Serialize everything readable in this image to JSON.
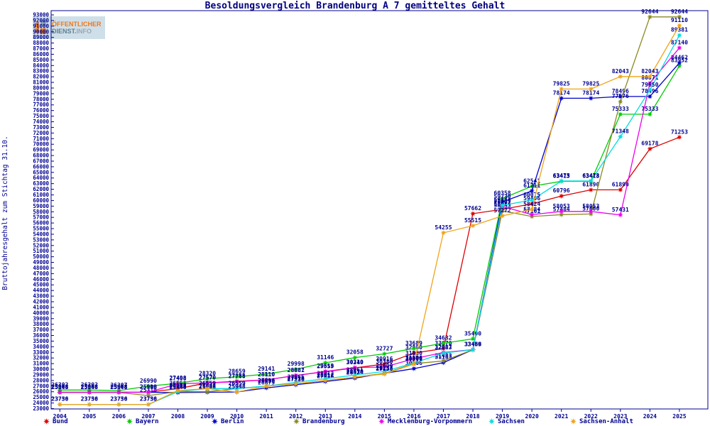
{
  "header": {
    "title": "Besoldungsvergleich Brandenburg A 7 gemitteltes Gehalt",
    "logo": {
      "line1": "ÖFFENTLICHER",
      "line2a": "DIENST.",
      "line2b": "INFO"
    }
  },
  "axis": {
    "y_title": "Bruttojahresgehalt zum Stichtag 31.10.",
    "y_min": 23000,
    "y_max": 93000,
    "y_step": 1000,
    "axis_color": "#000090"
  },
  "chart_data": {
    "type": "line",
    "title": "Besoldungsvergleich Brandenburg A 7 gemitteltes Gehalt",
    "xlabel": "",
    "ylabel": "Bruttojahresgehalt zum Stichtag 31.10.",
    "ylim": [
      23000,
      93000
    ],
    "grid": false,
    "legend_position": "bottom",
    "categories": [
      "2004",
      "2005",
      "2006",
      "2007",
      "2008",
      "2009",
      "2010",
      "2011",
      "2012",
      "2013",
      "2014",
      "2015",
      "2016",
      "2017",
      "2018",
      "2019",
      "2020",
      "2021",
      "2022",
      "2023",
      "2024",
      "2025"
    ],
    "series": [
      {
        "name": "Bund",
        "color": "#dd0000",
        "values": [
          25908,
          25908,
          25908,
          25910,
          26553,
          27570,
          27855,
          28110,
          28887,
          29559,
          30240,
          30916,
          32880,
          33670,
          57662,
          58424,
          59406,
          60796,
          61890,
          61890,
          69178,
          71253
        ]
      },
      {
        "name": "Bayern",
        "color": "#00cc00",
        "values": [
          26302,
          26302,
          26207,
          26990,
          27498,
          28320,
          28659,
          29141,
          29998,
          31146,
          32058,
          32727,
          33689,
          34632,
          35400,
          60358,
          62541,
          63413,
          63413,
          75333,
          75333,
          83952
        ]
      },
      {
        "name": "Berlin",
        "color": "#0000cc",
        "values": [
          25908,
          25908,
          25908,
          25908,
          25848,
          25908,
          25948,
          26679,
          27236,
          27816,
          28424,
          29257,
          30106,
          31183,
          33466,
          59730,
          61711,
          78174,
          78174,
          78496,
          78496,
          84462
        ]
      },
      {
        "name": "Brandenburg",
        "color": "#8a8a22",
        "values": [
          25848,
          25848,
          25848,
          25318,
          26008,
          26008,
          26559,
          26990,
          27416,
          28012,
          28610,
          29257,
          30976,
          31483,
          33459,
          58153,
          57161,
          57484,
          57600,
          77576,
          92644,
          92644
        ]
      },
      {
        "name": "Mecklenburg-Vorpommern",
        "color": "#ee00ee",
        "values": [
          25908,
          25908,
          25908,
          25910,
          27408,
          27570,
          27788,
          28110,
          28881,
          29613,
          30310,
          30380,
          31880,
          32987,
          33489,
          58939,
          57484,
          58053,
          58053,
          57431,
          80871,
          87140
        ]
      },
      {
        "name": "Sachsen",
        "color": "#00dede",
        "values": [
          23736,
          23736,
          23736,
          23736,
          26008,
          26559,
          26559,
          27016,
          27665,
          28313,
          28961,
          29609,
          31106,
          32883,
          33456,
          59144,
          60075,
          63475,
          63478,
          71348,
          79650,
          89381
        ]
      },
      {
        "name": "Sachsen-Anhalt",
        "color": "#f0a418",
        "values": [
          23750,
          23750,
          23750,
          23750,
          26198,
          26559,
          25948,
          26990,
          27416,
          28012,
          28610,
          29150,
          30900,
          54255,
          55515,
          57272,
          58424,
          79825,
          79825,
          82043,
          82043,
          91110
        ]
      }
    ]
  }
}
